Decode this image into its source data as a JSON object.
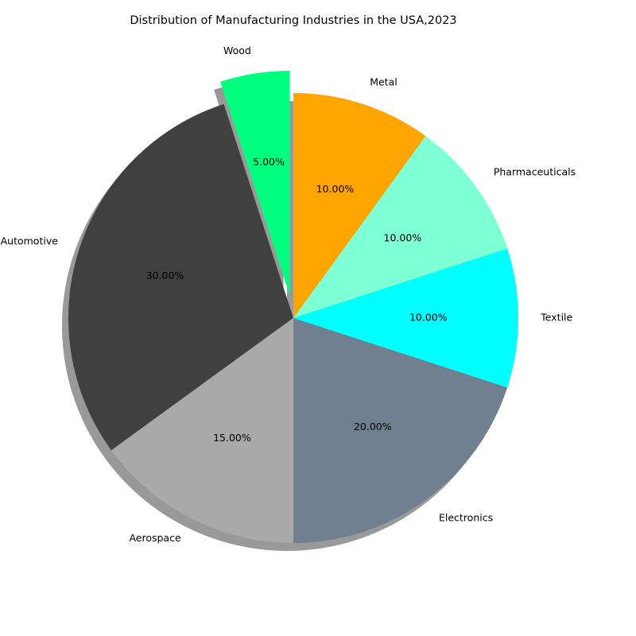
{
  "chart_data": {
    "type": "pie",
    "title": "Distribution of Manufacturing Industries in the USA,2023",
    "start_angle_deg": 90,
    "direction": "counterclockwise",
    "shadow": true,
    "slices": [
      {
        "label": "Wood",
        "value": 5,
        "pct_text": "5.00%",
        "color": "#00ff7f",
        "explode": 0.1
      },
      {
        "label": "Automotive",
        "value": 30,
        "pct_text": "30.00%",
        "color": "#404040",
        "explode": 0
      },
      {
        "label": "Aerospace",
        "value": 15,
        "pct_text": "15.00%",
        "color": "#a9a9a9",
        "explode": 0
      },
      {
        "label": "Electronics",
        "value": 20,
        "pct_text": "20.00%",
        "color": "#708090",
        "explode": 0
      },
      {
        "label": "Textile",
        "value": 10,
        "pct_text": "10.00%",
        "color": "#00ffff",
        "explode": 0
      },
      {
        "label": "Pharmaceuticals",
        "value": 10,
        "pct_text": "10.00%",
        "color": "#7fffd4",
        "explode": 0
      },
      {
        "label": "Metal",
        "value": 10,
        "pct_text": "10.00%",
        "color": "#ffa500",
        "explode": 0
      }
    ]
  }
}
